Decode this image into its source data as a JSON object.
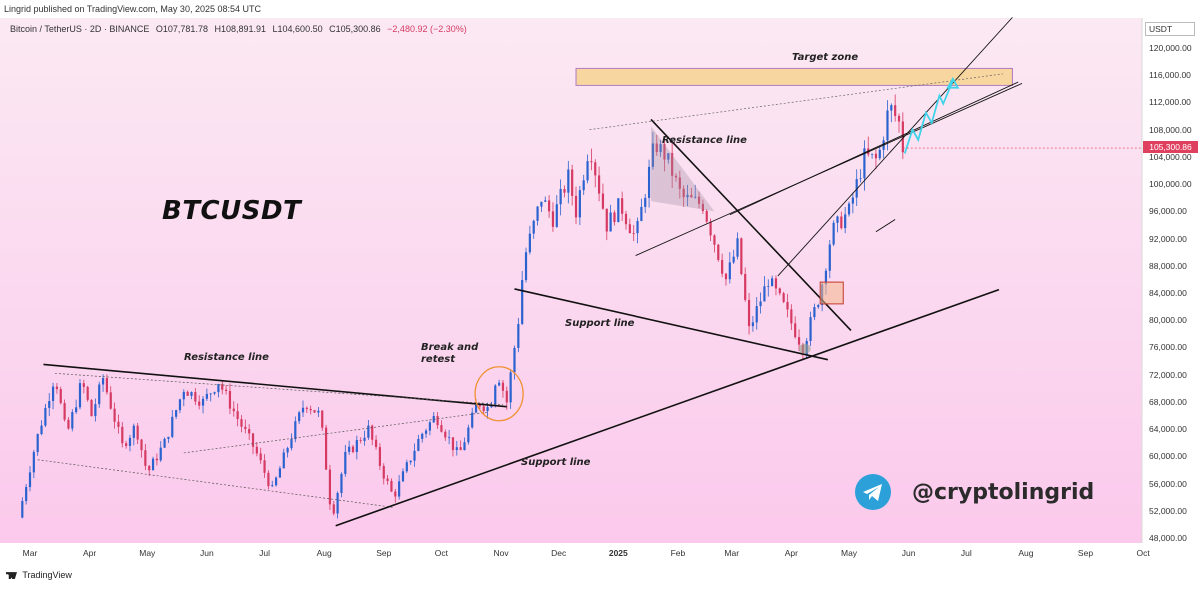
{
  "header": {
    "published": "Lingrid published on TradingView.com, May 30, 2025 08:54 UTC",
    "symbol": "Bitcoin / TetherUS · 2D · BINANCE",
    "open": "O107,781.78",
    "high": "H108,891.91",
    "low": "L104,600.50",
    "close": "C105,300.86",
    "change": "−2,480.92 (−2.30%)"
  },
  "currency": "USDT",
  "last_price_label": "105,300.86",
  "watermark": "BTCUSDT",
  "brand": "@cryptolingrid",
  "footer": "TradingView",
  "colors": {
    "bg_top": "#fbe9f3",
    "bg_bottom": "#fbc9ec",
    "up": "#2a62cf",
    "down": "#d63a62",
    "price_tag": "#e0405f",
    "target_fill": "#f8d59a",
    "telegram": "#2ba0d9",
    "projection": "#3fd4ea"
  },
  "chart_data": {
    "type": "candlestick",
    "interval": "2D",
    "x_ticks": [
      "Mar",
      "Apr",
      "May",
      "Jun",
      "Jul",
      "Aug",
      "Sep",
      "Oct",
      "Nov",
      "Dec",
      "2025",
      "Feb",
      "Mar",
      "Apr",
      "May",
      "Jun",
      "Jul",
      "Aug",
      "Sep",
      "Oct"
    ],
    "y_ticks": [
      48000,
      52000,
      56000,
      60000,
      64000,
      68000,
      72000,
      76000,
      80000,
      84000,
      88000,
      92000,
      96000,
      100000,
      104000,
      108000,
      112000,
      116000,
      120000
    ],
    "y_tick_labels": [
      "48,000.00",
      "52,000.00",
      "56,000.00",
      "60,000.00",
      "64,000.00",
      "68,000.00",
      "72,000.00",
      "76,000.00",
      "80,000.00",
      "84,000.00",
      "88,000.00",
      "92,000.00",
      "96,000.00",
      "100,000.00",
      "104,000.00",
      "108,000.00",
      "112,000.00",
      "116,000.00",
      "120,000.00"
    ],
    "ylim": [
      46000,
      122000
    ],
    "last_price": 105300.86,
    "price_path": [
      [
        "2024-02-24",
        51000
      ],
      [
        "2024-03-04",
        62000
      ],
      [
        "2024-03-14",
        72000
      ],
      [
        "2024-03-20",
        63000
      ],
      [
        "2024-03-28",
        71000
      ],
      [
        "2024-04-02",
        66000
      ],
      [
        "2024-04-08",
        71500
      ],
      [
        "2024-04-18",
        61500
      ],
      [
        "2024-04-25",
        64500
      ],
      [
        "2024-05-01",
        57500
      ],
      [
        "2024-05-10",
        62000
      ],
      [
        "2024-05-20",
        70000
      ],
      [
        "2024-05-30",
        68000
      ],
      [
        "2024-06-07",
        71000
      ],
      [
        "2024-06-18",
        65000
      ],
      [
        "2024-06-26",
        61000
      ],
      [
        "2024-07-05",
        55000
      ],
      [
        "2024-07-15",
        63000
      ],
      [
        "2024-07-22",
        68000
      ],
      [
        "2024-07-30",
        66000
      ],
      [
        "2024-08-05",
        51000
      ],
      [
        "2024-08-12",
        60000
      ],
      [
        "2024-08-24",
        64000
      ],
      [
        "2024-08-31",
        58000
      ],
      [
        "2024-09-06",
        54000
      ],
      [
        "2024-09-20",
        63000
      ],
      [
        "2024-09-28",
        66000
      ],
      [
        "2024-10-10",
        60000
      ],
      [
        "2024-10-20",
        68000
      ],
      [
        "2024-10-26",
        67000
      ],
      [
        "2024-10-30",
        72500
      ],
      [
        "2024-11-04",
        68000
      ],
      [
        "2024-11-10",
        80000
      ],
      [
        "2024-11-13",
        89000
      ],
      [
        "2024-11-22",
        98000
      ],
      [
        "2024-11-28",
        95000
      ],
      [
        "2024-12-06",
        101000
      ],
      [
        "2024-12-10",
        96000
      ],
      [
        "2024-12-17",
        106000
      ],
      [
        "2024-12-26",
        94000
      ],
      [
        "2025-01-02",
        97000
      ],
      [
        "2025-01-10",
        92000
      ],
      [
        "2025-01-20",
        106000
      ],
      [
        "2025-01-26",
        104000
      ],
      [
        "2025-02-03",
        98000
      ],
      [
        "2025-02-14",
        97000
      ],
      [
        "2025-02-26",
        86000
      ],
      [
        "2025-03-04",
        91000
      ],
      [
        "2025-03-10",
        78500
      ],
      [
        "2025-03-20",
        86000
      ],
      [
        "2025-03-28",
        82000
      ],
      [
        "2025-04-07",
        76000
      ],
      [
        "2025-04-16",
        84000
      ],
      [
        "2025-04-22",
        93000
      ],
      [
        "2025-05-01",
        96000
      ],
      [
        "2025-05-09",
        104000
      ],
      [
        "2025-05-16",
        103500
      ],
      [
        "2025-05-22",
        111500
      ],
      [
        "2025-05-27",
        109000
      ],
      [
        "2025-05-29",
        105300
      ]
    ],
    "annotations": [
      {
        "text": "Target zone"
      },
      {
        "text": "Resistance line"
      },
      {
        "text": "Resistance line"
      },
      {
        "text": "Support line"
      },
      {
        "text": "Support line"
      },
      {
        "text": "Break and"
      },
      {
        "text": "retest"
      }
    ],
    "target_zone": [
      114500,
      117000
    ],
    "grid": false,
    "legend": "none"
  }
}
